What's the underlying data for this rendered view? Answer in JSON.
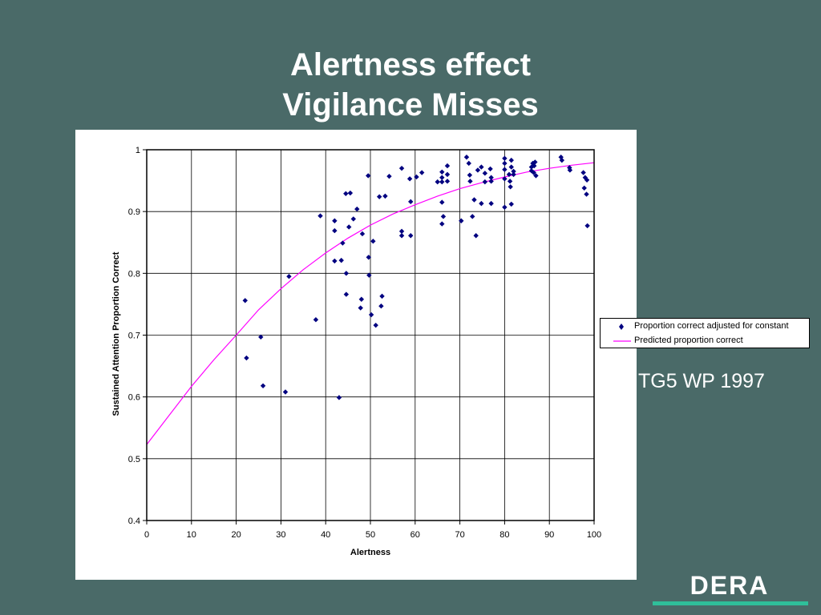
{
  "slide": {
    "title_line1": "Alertness effect",
    "title_line2": "Vigilance Misses",
    "citation": "TG5 WP 1997",
    "logo_text": "DERA"
  },
  "colors": {
    "background": "#4a6a68",
    "points": "#000080",
    "curve": "#ff00ff",
    "logo_bar": "#2fbf9a"
  },
  "chart_data": {
    "type": "scatter",
    "xlabel": "Alertness",
    "ylabel": "Sustained Attention Proportion Correct",
    "xlim": [
      0,
      100
    ],
    "ylim": [
      0.4,
      1
    ],
    "xticks": [
      "0",
      "10",
      "20",
      "30",
      "40",
      "50",
      "60",
      "70",
      "80",
      "90",
      "100"
    ],
    "yticks": [
      "0.4",
      "0.5",
      "0.6",
      "0.7",
      "0.8",
      "0.9",
      "1"
    ],
    "grid": true,
    "legend_position": "right",
    "series": [
      {
        "name": "Proportion correct adjusted for constant",
        "kind": "scatter",
        "points": [
          [
            22,
            0.756
          ],
          [
            22.3,
            0.663
          ],
          [
            25.5,
            0.697
          ],
          [
            26,
            0.618
          ],
          [
            31,
            0.608
          ],
          [
            31.8,
            0.795
          ],
          [
            37.8,
            0.725
          ],
          [
            38.8,
            0.893
          ],
          [
            42,
            0.885
          ],
          [
            42,
            0.869
          ],
          [
            42,
            0.82
          ],
          [
            43,
            0.599
          ],
          [
            43.5,
            0.821
          ],
          [
            43.8,
            0.849
          ],
          [
            44.5,
            0.929
          ],
          [
            44.6,
            0.8
          ],
          [
            44.6,
            0.766
          ],
          [
            45.2,
            0.875
          ],
          [
            45.5,
            0.93
          ],
          [
            46.2,
            0.888
          ],
          [
            47,
            0.904
          ],
          [
            47.8,
            0.744
          ],
          [
            48,
            0.758
          ],
          [
            48.2,
            0.864
          ],
          [
            49.5,
            0.958
          ],
          [
            49.6,
            0.826
          ],
          [
            49.7,
            0.797
          ],
          [
            50.2,
            0.733
          ],
          [
            50.6,
            0.852
          ],
          [
            51.2,
            0.716
          ],
          [
            52,
            0.924
          ],
          [
            52.4,
            0.747
          ],
          [
            52.6,
            0.763
          ],
          [
            53.3,
            0.925
          ],
          [
            54.2,
            0.957
          ],
          [
            57,
            0.97
          ],
          [
            57,
            0.868
          ],
          [
            57,
            0.861
          ],
          [
            58.8,
            0.953
          ],
          [
            59,
            0.916
          ],
          [
            59,
            0.861
          ],
          [
            60.3,
            0.956
          ],
          [
            61.5,
            0.963
          ],
          [
            65,
            0.948
          ],
          [
            66,
            0.964
          ],
          [
            66,
            0.955
          ],
          [
            66,
            0.948
          ],
          [
            66,
            0.915
          ],
          [
            66,
            0.88
          ],
          [
            66.3,
            0.892
          ],
          [
            67.2,
            0.974
          ],
          [
            67.2,
            0.96
          ],
          [
            67.2,
            0.949
          ],
          [
            70.3,
            0.885
          ],
          [
            71.5,
            0.988
          ],
          [
            72,
            0.978
          ],
          [
            72.2,
            0.959
          ],
          [
            72.3,
            0.949
          ],
          [
            72.8,
            0.892
          ],
          [
            73.2,
            0.919
          ],
          [
            73.6,
            0.861
          ],
          [
            74,
            0.967
          ],
          [
            74.8,
            0.972
          ],
          [
            74.8,
            0.913
          ],
          [
            75.6,
            0.962
          ],
          [
            75.6,
            0.948
          ],
          [
            76.8,
            0.969
          ],
          [
            77,
            0.955
          ],
          [
            77,
            0.949
          ],
          [
            77,
            0.913
          ],
          [
            80,
            0.986
          ],
          [
            80,
            0.978
          ],
          [
            80,
            0.968
          ],
          [
            80,
            0.953
          ],
          [
            80,
            0.907
          ],
          [
            81,
            0.96
          ],
          [
            81.2,
            0.949
          ],
          [
            81.3,
            0.94
          ],
          [
            81.5,
            0.983
          ],
          [
            81.5,
            0.972
          ],
          [
            81.5,
            0.912
          ],
          [
            82,
            0.965
          ],
          [
            82,
            0.96
          ],
          [
            86,
            0.972
          ],
          [
            86,
            0.966
          ],
          [
            86.3,
            0.978
          ],
          [
            86.5,
            0.963
          ],
          [
            86.6,
            0.974
          ],
          [
            86.8,
            0.98
          ],
          [
            87,
            0.958
          ],
          [
            92.6,
            0.988
          ],
          [
            92.8,
            0.983
          ],
          [
            94.5,
            0.971
          ],
          [
            94.6,
            0.967
          ],
          [
            97.6,
            0.963
          ],
          [
            97.8,
            0.938
          ],
          [
            98,
            0.955
          ],
          [
            98.3,
            0.928
          ],
          [
            98.4,
            0.951
          ],
          [
            98.5,
            0.877
          ]
        ]
      },
      {
        "name": "Predicted proportion correct",
        "kind": "line",
        "points": [
          [
            0,
            0.523
          ],
          [
            5,
            0.57
          ],
          [
            10,
            0.617
          ],
          [
            15,
            0.66
          ],
          [
            20,
            0.7
          ],
          [
            25,
            0.741
          ],
          [
            30,
            0.775
          ],
          [
            35,
            0.806
          ],
          [
            40,
            0.833
          ],
          [
            45,
            0.857
          ],
          [
            50,
            0.878
          ],
          [
            55,
            0.896
          ],
          [
            60,
            0.911
          ],
          [
            65,
            0.925
          ],
          [
            70,
            0.937
          ],
          [
            75,
            0.947
          ],
          [
            80,
            0.956
          ],
          [
            85,
            0.964
          ],
          [
            90,
            0.97
          ],
          [
            95,
            0.975
          ],
          [
            100,
            0.979
          ]
        ]
      }
    ]
  }
}
